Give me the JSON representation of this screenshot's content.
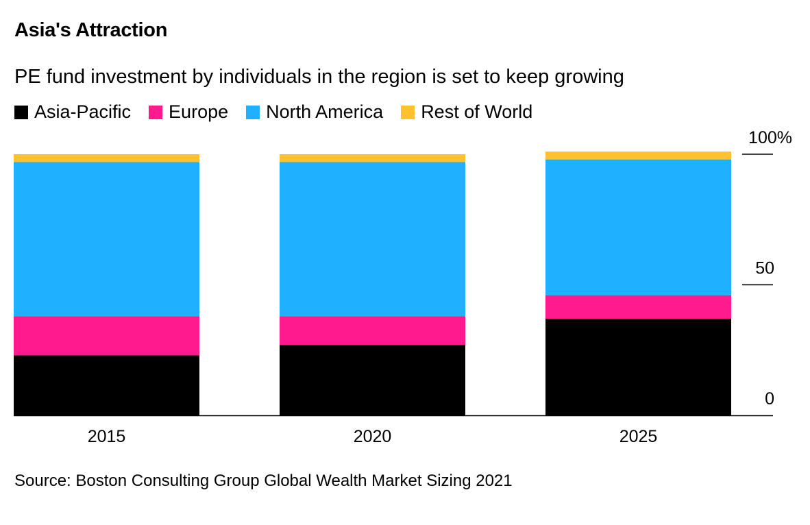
{
  "header": {
    "title": "Asia's Attraction",
    "subtitle": "PE fund investment by individuals in the region is set to keep growing"
  },
  "legend": {
    "items": [
      {
        "label": "Asia-Pacific",
        "color": "#000000"
      },
      {
        "label": "Europe",
        "color": "#ff1b8d"
      },
      {
        "label": "North America",
        "color": "#1fb0ff"
      },
      {
        "label": "Rest of World",
        "color": "#ffc12e"
      }
    ]
  },
  "chart_data": {
    "type": "bar",
    "stacked": true,
    "categories": [
      "2015",
      "2020",
      "2025"
    ],
    "series": [
      {
        "name": "Asia-Pacific",
        "color": "#000000",
        "values": [
          23,
          27,
          37
        ]
      },
      {
        "name": "Europe",
        "color": "#ff1b8d",
        "values": [
          15,
          11,
          9
        ]
      },
      {
        "name": "North America",
        "color": "#1fb0ff",
        "values": [
          59,
          59,
          52
        ]
      },
      {
        "name": "Rest of World",
        "color": "#ffc12e",
        "values": [
          3,
          3,
          3
        ]
      }
    ],
    "yticks": [
      0,
      50,
      100
    ],
    "ytick_labels": [
      "0",
      "50",
      "100%"
    ],
    "ylim": [
      0,
      100
    ],
    "axis_position": "right"
  },
  "footer": {
    "source": "Source: Boston Consulting Group Global Wealth Market Sizing 2021"
  }
}
